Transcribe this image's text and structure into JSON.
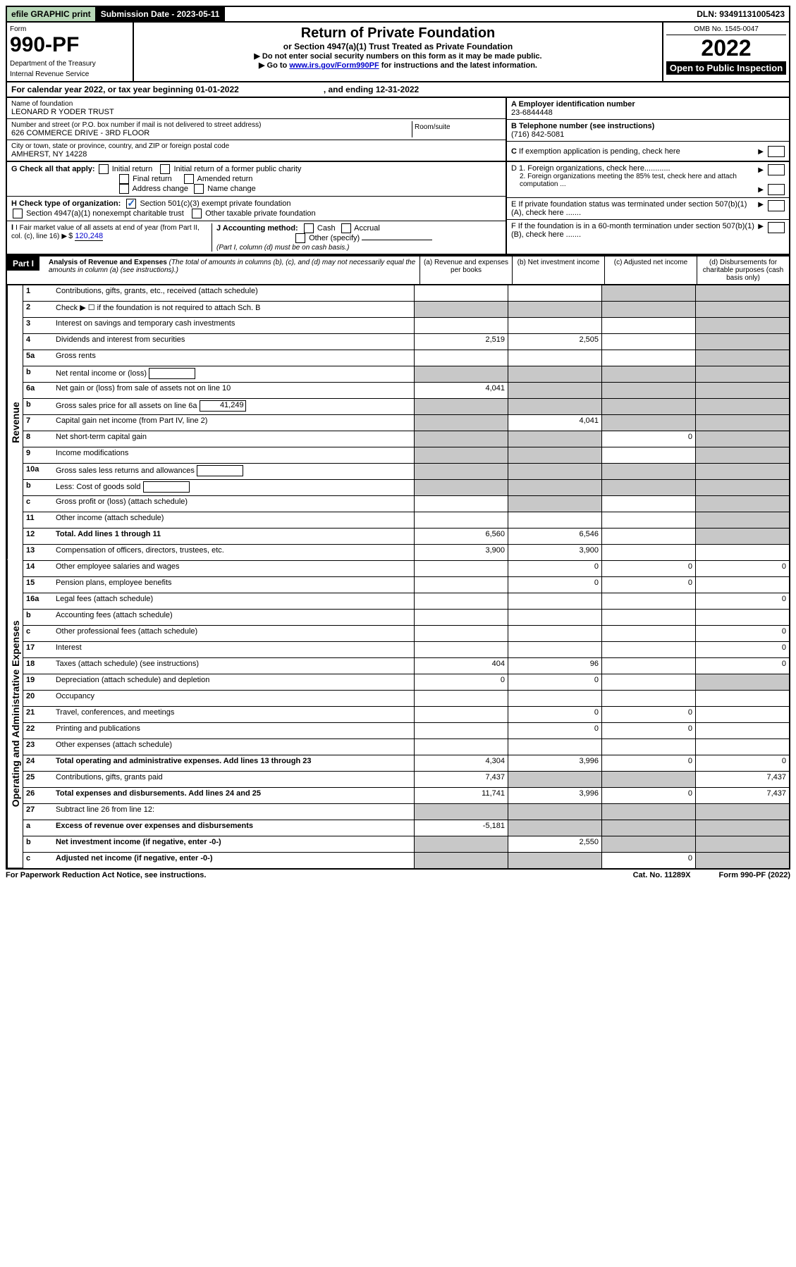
{
  "meta": {
    "efile": "efile GRAPHIC print",
    "submission_label": "Submission Date - 2023-05-11",
    "dln": "DLN: 93491131005423",
    "omb": "OMB No. 1545-0047",
    "form_word": "Form",
    "form_number": "990-PF",
    "dept1": "Department of the Treasury",
    "dept2": "Internal Revenue Service",
    "title": "Return of Private Foundation",
    "subtitle": "or Section 4947(a)(1) Trust Treated as Private Foundation",
    "note1": "▶ Do not enter social security numbers on this form as it may be made public.",
    "note2_pre": "▶ Go to ",
    "note2_link": "www.irs.gov/Form990PF",
    "note2_post": " for instructions and the latest information.",
    "year": "2022",
    "open": "Open to Public Inspection",
    "calyear_a": "For calendar year 2022, or tax year beginning 01-01-2022",
    "calyear_b": ", and ending 12-31-2022"
  },
  "entity": {
    "name_lbl": "Name of foundation",
    "name": "LEONARD R YODER TRUST",
    "addr_lbl": "Number and street (or P.O. box number if mail is not delivered to street address)",
    "addr": "626 COMMERCE DRIVE - 3RD FLOOR",
    "suite_lbl": "Room/suite",
    "city_lbl": "City or town, state or province, country, and ZIP or foreign postal code",
    "city": "AMHERST, NY  14228",
    "a_lbl": "A Employer identification number",
    "a_val": "23-6844448",
    "b_lbl": "B Telephone number (see instructions)",
    "b_val": "(716) 842-5081",
    "c_lbl": "C If exemption application is pending, check here",
    "d1": "D 1. Foreign organizations, check here............",
    "d2": "2. Foreign organizations meeting the 85% test, check here and attach computation ...",
    "e": "E  If private foundation status was terminated under section 507(b)(1)(A), check here .......",
    "f": "F  If the foundation is in a 60-month termination under section 507(b)(1)(B), check here .......",
    "g_lbl": "G Check all that apply:",
    "g_opts": [
      "Initial return",
      "Initial return of a former public charity",
      "Final return",
      "Amended return",
      "Address change",
      "Name change"
    ],
    "h_lbl": "H Check type of organization:",
    "h1": "Section 501(c)(3) exempt private foundation",
    "h2": "Section 4947(a)(1) nonexempt charitable trust",
    "h3": "Other taxable private foundation",
    "i_lbl": "I Fair market value of all assets at end of year (from Part II, col. (c), line 16)",
    "i_val": "120,248",
    "j_lbl": "J Accounting method:",
    "j_opts": [
      "Cash",
      "Accrual"
    ],
    "j_other": "Other (specify)",
    "j_note": "(Part I, column (d) must be on cash basis.)"
  },
  "part1": {
    "label": "Part I",
    "title": "Analysis of Revenue and Expenses",
    "title_note": " (The total of amounts in columns (b), (c), and (d) may not necessarily equal the amounts in column (a) (see instructions).)",
    "cols": {
      "a": "(a)  Revenue and expenses per books",
      "b": "(b)  Net investment income",
      "c": "(c)  Adjusted net income",
      "d": "(d)  Disbursements for charitable purposes (cash basis only)"
    },
    "side_labels": {
      "rev": "Revenue",
      "op": "Operating and Administrative Expenses"
    }
  },
  "rows": [
    {
      "n": "1",
      "t": "Contributions, gifts, grants, etc., received (attach schedule)",
      "a": "",
      "b": "",
      "c": "grey",
      "d": "grey"
    },
    {
      "n": "2",
      "t": "Check ▶ ☐ if the foundation is not required to attach Sch. B",
      "empty": true,
      "a": "grey",
      "b": "grey",
      "c": "grey",
      "d": "grey"
    },
    {
      "n": "3",
      "t": "Interest on savings and temporary cash investments",
      "a": "",
      "b": "",
      "c": "",
      "d": "grey"
    },
    {
      "n": "4",
      "t": "Dividends and interest from securities",
      "a": "2,519",
      "b": "2,505",
      "c": "",
      "d": "grey"
    },
    {
      "n": "5a",
      "t": "Gross rents",
      "a": "",
      "b": "",
      "c": "",
      "d": "grey"
    },
    {
      "n": "b",
      "t": "Net rental income or (loss)",
      "inline": "",
      "a": "grey",
      "b": "grey",
      "c": "grey",
      "d": "grey"
    },
    {
      "n": "6a",
      "t": "Net gain or (loss) from sale of assets not on line 10",
      "a": "4,041",
      "b": "grey",
      "c": "grey",
      "d": "grey"
    },
    {
      "n": "b",
      "t": "Gross sales price for all assets on line 6a",
      "inline": "41,249",
      "a": "grey",
      "b": "grey",
      "c": "grey",
      "d": "grey"
    },
    {
      "n": "7",
      "t": "Capital gain net income (from Part IV, line 2)",
      "a": "grey",
      "b": "4,041",
      "c": "grey",
      "d": "grey"
    },
    {
      "n": "8",
      "t": "Net short-term capital gain",
      "a": "grey",
      "b": "grey",
      "c": "0",
      "d": "grey"
    },
    {
      "n": "9",
      "t": "Income modifications",
      "a": "grey",
      "b": "grey",
      "c": "",
      "d": "grey"
    },
    {
      "n": "10a",
      "t": "Gross sales less returns and allowances",
      "inline": "",
      "a": "grey",
      "b": "grey",
      "c": "grey",
      "d": "grey"
    },
    {
      "n": "b",
      "t": "Less: Cost of goods sold",
      "inline": "",
      "a": "grey",
      "b": "grey",
      "c": "grey",
      "d": "grey"
    },
    {
      "n": "c",
      "t": "Gross profit or (loss) (attach schedule)",
      "a": "",
      "b": "grey",
      "c": "",
      "d": "grey"
    },
    {
      "n": "11",
      "t": "Other income (attach schedule)",
      "a": "",
      "b": "",
      "c": "",
      "d": "grey"
    },
    {
      "n": "12",
      "t": "Total. Add lines 1 through 11",
      "bold": true,
      "a": "6,560",
      "b": "6,546",
      "c": "",
      "d": "grey"
    },
    {
      "n": "13",
      "t": "Compensation of officers, directors, trustees, etc.",
      "a": "3,900",
      "b": "3,900",
      "c": "",
      "d": ""
    },
    {
      "n": "14",
      "t": "Other employee salaries and wages",
      "a": "",
      "b": "0",
      "c": "0",
      "d": "0"
    },
    {
      "n": "15",
      "t": "Pension plans, employee benefits",
      "a": "",
      "b": "0",
      "c": "0",
      "d": ""
    },
    {
      "n": "16a",
      "t": "Legal fees (attach schedule)",
      "a": "",
      "b": "",
      "c": "",
      "d": "0"
    },
    {
      "n": "b",
      "t": "Accounting fees (attach schedule)",
      "a": "",
      "b": "",
      "c": "",
      "d": ""
    },
    {
      "n": "c",
      "t": "Other professional fees (attach schedule)",
      "a": "",
      "b": "",
      "c": "",
      "d": "0"
    },
    {
      "n": "17",
      "t": "Interest",
      "a": "",
      "b": "",
      "c": "",
      "d": "0"
    },
    {
      "n": "18",
      "t": "Taxes (attach schedule) (see instructions)",
      "a": "404",
      "b": "96",
      "c": "",
      "d": "0"
    },
    {
      "n": "19",
      "t": "Depreciation (attach schedule) and depletion",
      "a": "0",
      "b": "0",
      "c": "",
      "d": "grey"
    },
    {
      "n": "20",
      "t": "Occupancy",
      "a": "",
      "b": "",
      "c": "",
      "d": ""
    },
    {
      "n": "21",
      "t": "Travel, conferences, and meetings",
      "a": "",
      "b": "0",
      "c": "0",
      "d": ""
    },
    {
      "n": "22",
      "t": "Printing and publications",
      "a": "",
      "b": "0",
      "c": "0",
      "d": ""
    },
    {
      "n": "23",
      "t": "Other expenses (attach schedule)",
      "a": "",
      "b": "",
      "c": "",
      "d": ""
    },
    {
      "n": "24",
      "t": "Total operating and administrative expenses. Add lines 13 through 23",
      "bold": true,
      "a": "4,304",
      "b": "3,996",
      "c": "0",
      "d": "0"
    },
    {
      "n": "25",
      "t": "Contributions, gifts, grants paid",
      "a": "7,437",
      "b": "grey",
      "c": "grey",
      "d": "7,437"
    },
    {
      "n": "26",
      "t": "Total expenses and disbursements. Add lines 24 and 25",
      "bold": true,
      "a": "11,741",
      "b": "3,996",
      "c": "0",
      "d": "7,437"
    },
    {
      "n": "27",
      "t": "Subtract line 26 from line 12:",
      "a": "grey",
      "b": "grey",
      "c": "grey",
      "d": "grey"
    },
    {
      "n": "a",
      "t": "Excess of revenue over expenses and disbursements",
      "bold": true,
      "a": "-5,181",
      "b": "grey",
      "c": "grey",
      "d": "grey"
    },
    {
      "n": "b",
      "t": "Net investment income (if negative, enter -0-)",
      "bold": true,
      "a": "grey",
      "b": "2,550",
      "c": "grey",
      "d": "grey"
    },
    {
      "n": "c",
      "t": "Adjusted net income (if negative, enter -0-)",
      "bold": true,
      "a": "grey",
      "b": "grey",
      "c": "0",
      "d": "grey"
    }
  ],
  "footer": {
    "left": "For Paperwork Reduction Act Notice, see instructions.",
    "cat": "Cat. No. 11289X",
    "form": "Form 990-PF (2022)"
  },
  "colors": {
    "efile_bg": "#b8d8b8",
    "link": "#0000cc",
    "grey_cell": "#c8c8c8"
  }
}
